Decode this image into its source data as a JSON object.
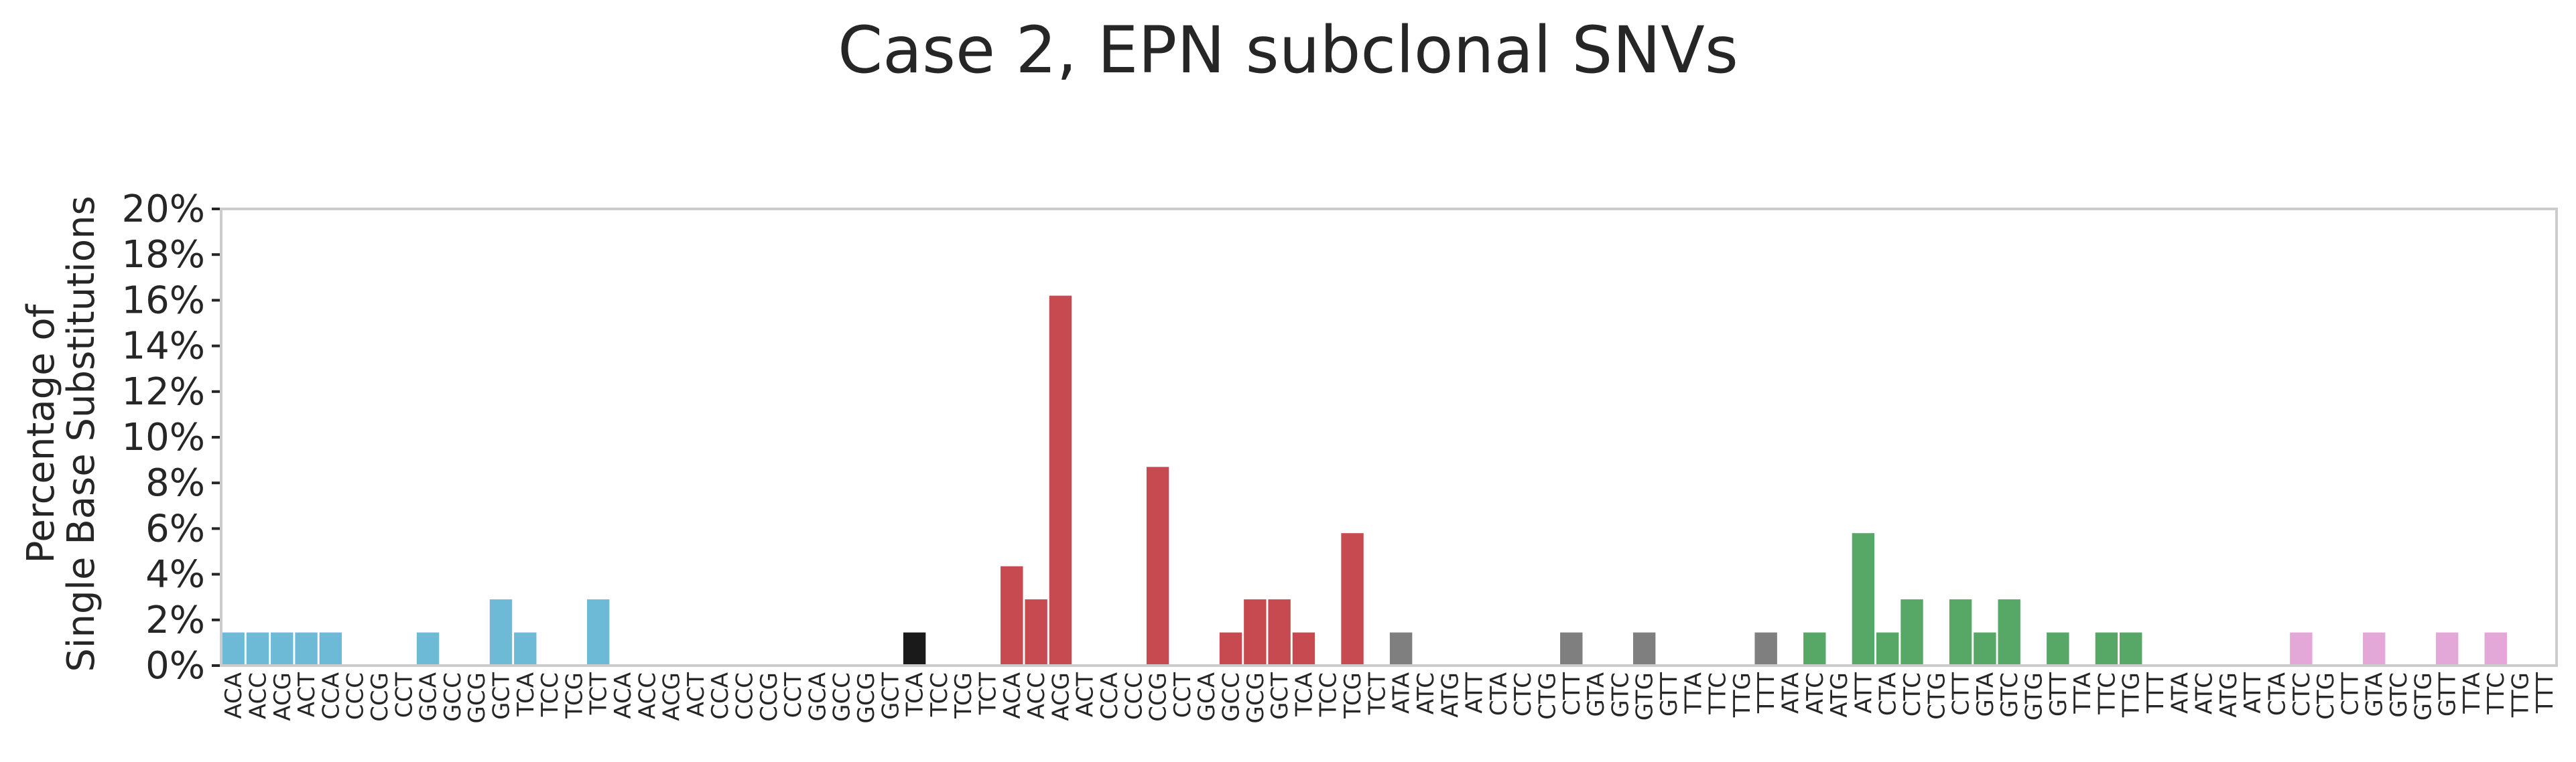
{
  "chart_data": {
    "type": "bar",
    "title": "Case 2, EPN subclonal SNVs",
    "ylabel_lines": [
      "Percentage of",
      "Single Base Substitutions"
    ],
    "xlabel": "",
    "ylim": [
      0,
      20
    ],
    "yticks": [
      0,
      2,
      4,
      6,
      8,
      10,
      12,
      14,
      16,
      18,
      20
    ],
    "ytick_suffix": "%",
    "grid": false,
    "categories": [
      "ACA",
      "ACC",
      "ACG",
      "ACT",
      "CCA",
      "CCC",
      "CCG",
      "CCT",
      "GCA",
      "GCC",
      "GCG",
      "GCT",
      "TCA",
      "TCC",
      "TCG",
      "TCT",
      "ACA",
      "ACC",
      "ACG",
      "ACT",
      "CCA",
      "CCC",
      "CCG",
      "CCT",
      "GCA",
      "GCC",
      "GCG",
      "GCT",
      "TCA",
      "TCC",
      "TCG",
      "TCT",
      "ACA",
      "ACC",
      "ACG",
      "ACT",
      "CCA",
      "CCC",
      "CCG",
      "CCT",
      "GCA",
      "GCC",
      "GCG",
      "GCT",
      "TCA",
      "TCC",
      "TCG",
      "TCT",
      "ATA",
      "ATC",
      "ATG",
      "ATT",
      "CTA",
      "CTC",
      "CTG",
      "CTT",
      "GTA",
      "GTC",
      "GTG",
      "GTT",
      "TTA",
      "TTC",
      "TTG",
      "TTT",
      "ATA",
      "ATC",
      "ATG",
      "ATT",
      "CTA",
      "CTC",
      "CTG",
      "CTT",
      "GTA",
      "GTC",
      "GTG",
      "GTT",
      "TTA",
      "TTC",
      "TTG",
      "TTT",
      "ATA",
      "ATC",
      "ATG",
      "ATT",
      "CTA",
      "CTC",
      "CTG",
      "CTT",
      "GTA",
      "GTC",
      "GTG",
      "GTT",
      "TTA",
      "TTC",
      "TTG",
      "TTT"
    ],
    "group_colors": [
      "#6dbad7",
      "#1a1a1a",
      "#c64a50",
      "#7f7f7f",
      "#57a767",
      "#e4a8d8"
    ],
    "values": [
      1.45,
      1.45,
      1.45,
      1.45,
      1.45,
      0,
      0,
      0,
      1.45,
      0,
      0,
      2.9,
      1.45,
      0,
      0,
      2.9,
      0,
      0,
      0,
      0,
      0,
      0,
      0,
      0,
      0,
      0,
      0,
      0,
      1.45,
      0,
      0,
      0,
      4.35,
      2.9,
      16.2,
      0,
      0,
      0,
      8.7,
      0,
      0,
      1.45,
      2.9,
      2.9,
      1.45,
      0,
      5.8,
      0,
      1.45,
      0,
      0,
      0,
      0,
      0,
      0,
      1.45,
      0,
      0,
      1.45,
      0,
      0,
      0,
      0,
      1.45,
      0,
      1.45,
      0,
      5.8,
      1.45,
      2.9,
      0,
      2.9,
      1.45,
      2.9,
      0,
      1.45,
      0,
      1.45,
      1.45,
      0,
      0,
      0,
      0,
      0,
      0,
      1.45,
      0,
      0,
      1.45,
      0,
      0,
      1.45,
      0,
      1.45,
      0,
      0
    ]
  }
}
